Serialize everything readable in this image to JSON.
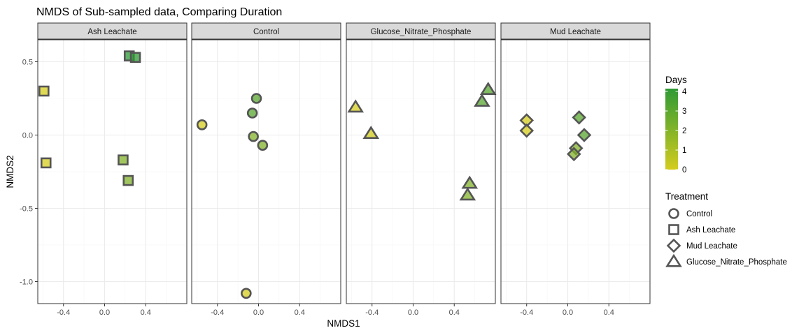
{
  "chart_data": {
    "type": "scatter",
    "title": "NMDS of Sub-sampled data, Comparing Duration",
    "xlabel": "NMDS1",
    "ylabel": "NMDS2",
    "xlim": [
      -0.65,
      0.8
    ],
    "ylim": [
      -1.15,
      0.65
    ],
    "x_ticks": [
      -0.4,
      0.0,
      0.4
    ],
    "x_tick_labels": [
      "-0.4",
      "0.0",
      "0.4"
    ],
    "y_ticks": [
      0.5,
      0.0,
      -0.5,
      -1.0
    ],
    "y_tick_labels": [
      "0.5",
      "0.0",
      "-0.5",
      "-1.0"
    ],
    "grid": true,
    "facets": [
      {
        "label": "Ash Leachate",
        "shape": "square",
        "points": [
          {
            "x": 0.24,
            "y": 0.54,
            "days": 4
          },
          {
            "x": 0.3,
            "y": 0.53,
            "days": 4
          },
          {
            "x": -0.59,
            "y": 0.3,
            "days": 0
          },
          {
            "x": -0.57,
            "y": -0.19,
            "days": 0
          },
          {
            "x": 0.18,
            "y": -0.17,
            "days": 2
          },
          {
            "x": 0.23,
            "y": -0.31,
            "days": 2
          }
        ]
      },
      {
        "label": "Control",
        "shape": "circle",
        "points": [
          {
            "x": -0.02,
            "y": 0.25,
            "days": 3
          },
          {
            "x": -0.06,
            "y": 0.15,
            "days": 3
          },
          {
            "x": -0.55,
            "y": 0.07,
            "days": 0
          },
          {
            "x": -0.05,
            "y": -0.01,
            "days": 2
          },
          {
            "x": 0.04,
            "y": -0.07,
            "days": 2
          },
          {
            "x": -0.12,
            "y": -1.08,
            "days": 0
          }
        ]
      },
      {
        "label": "Glucose_Nitrate_Phosphate",
        "shape": "triangle",
        "points": [
          {
            "x": 0.73,
            "y": 0.31,
            "days": 3
          },
          {
            "x": 0.67,
            "y": 0.23,
            "days": 3
          },
          {
            "x": -0.56,
            "y": 0.19,
            "days": 0
          },
          {
            "x": -0.41,
            "y": 0.01,
            "days": 0
          },
          {
            "x": 0.55,
            "y": -0.33,
            "days": 2
          },
          {
            "x": 0.53,
            "y": -0.41,
            "days": 2
          }
        ]
      },
      {
        "label": "Mud Leachate",
        "shape": "diamond",
        "points": [
          {
            "x": -0.4,
            "y": 0.1,
            "days": 0
          },
          {
            "x": -0.4,
            "y": 0.03,
            "days": 0
          },
          {
            "x": 0.11,
            "y": 0.12,
            "days": 3
          },
          {
            "x": 0.16,
            "y": 0.0,
            "days": 3
          },
          {
            "x": 0.08,
            "y": -0.09,
            "days": 2
          },
          {
            "x": 0.06,
            "y": -0.13,
            "days": 2
          }
        ]
      }
    ],
    "color_legend": {
      "title": "Days",
      "ticks": [
        4,
        3,
        2,
        1,
        0
      ],
      "tick_labels": [
        "4",
        "3",
        "2",
        "1",
        "0"
      ],
      "range": [
        0,
        4
      ],
      "low_color": "#d4cc1e",
      "high_color": "#2e9a34"
    },
    "shape_legend": {
      "title": "Treatment",
      "entries": [
        {
          "label": "Control",
          "shape": "circle"
        },
        {
          "label": "Ash Leachate",
          "shape": "square"
        },
        {
          "label": "Mud Leachate",
          "shape": "diamond"
        },
        {
          "label": "Glucose_Nitrate_Phosphate",
          "shape": "triangle"
        }
      ]
    },
    "colors": {
      "panel_border": "#333333",
      "strip_fill": "#d9d9d9",
      "grid_major": "#ebebeb",
      "grid_minor": "#f5f5f5",
      "marker_stroke": "#555555"
    }
  }
}
